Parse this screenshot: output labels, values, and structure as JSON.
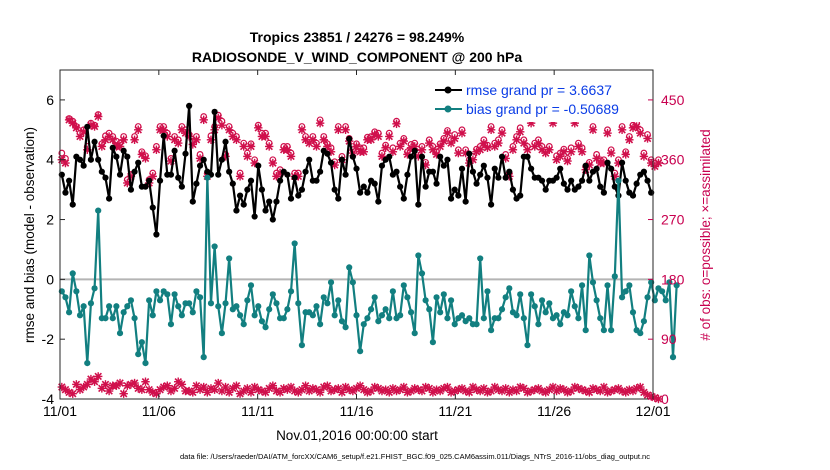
{
  "chart_data": {
    "type": "line",
    "title": "Tropics 23851 / 24276 = 98.249%",
    "subtitle": "RADIOSONDE_V_WIND_COMPONENT @ 200 hPa",
    "xlabel": "Nov.01,2016 00:00:00 start",
    "ylabel": "rmse and bias (model - observation)",
    "y2label": "# of obs: o=possible; ×=assimilated",
    "footnote": "data file: /Users/raeder/DAI/ATM_forcXX/CAM6_setup/f.e21.FHIST_BGC.f09_025.CAM6assim.011/Diags_NTrS_2016-11/obs_diag_output.nc",
    "xlim": [
      0,
      30
    ],
    "x_ticks": [
      0,
      5,
      10,
      15,
      20,
      25,
      30
    ],
    "x_tick_labels": [
      "11/01",
      "11/06",
      "11/11",
      "11/16",
      "11/21",
      "11/26",
      "12/01"
    ],
    "ylim": [
      -4,
      7
    ],
    "y_ticks": [
      -4,
      -2,
      0,
      2,
      4,
      6
    ],
    "y_tick_labels": [
      "-4",
      "-2",
      "0",
      "2",
      "4",
      "6"
    ],
    "y2lim": [
      0,
      495
    ],
    "y2_ticks": [
      0,
      90,
      180,
      270,
      360,
      450
    ],
    "y2_tick_labels": [
      "0",
      "90",
      "180",
      "270",
      "360",
      "450"
    ],
    "legend": [
      {
        "label": "rmse grand pr = 3.6637",
        "color": "#000000"
      },
      {
        "label": "bias grand pr = -0.50689",
        "color": "#127f80"
      }
    ],
    "colors": {
      "rmse": "#000000",
      "bias": "#127f80",
      "obs": "#d0104c",
      "zero": "#b4b4b4"
    },
    "series": [
      {
        "name": "rmse",
        "values": [
          3.5,
          2.9,
          3.3,
          2.5,
          4.1,
          4.0,
          3.8,
          5.1,
          4.0,
          4.6,
          4.0,
          3.6,
          3.4,
          2.7,
          4.4,
          4.1,
          3.5,
          4.3,
          4.1,
          3.0,
          3.6,
          3.9,
          3.1,
          3.1,
          3.3,
          2.4,
          1.5,
          3.3,
          4.8,
          3.5,
          3.5,
          4.3,
          3.4,
          3.1,
          4.2,
          5.8,
          2.6,
          3.2,
          3.8,
          4.0,
          3.6,
          3.5,
          5.6,
          3.5,
          4.0,
          4.6,
          3.6,
          3.2,
          2.3,
          2.8,
          2.5,
          3.0,
          3.3,
          2.1,
          3.8,
          3.0,
          2.3,
          2.6,
          2.0,
          2.6,
          3.3,
          3.6,
          3.5,
          2.7,
          3.4,
          2.8,
          3.0,
          3.6,
          4.0,
          3.3,
          3.3,
          3.6,
          4.3,
          4.2,
          3.9,
          3.0,
          2.7,
          4.0,
          3.5,
          4.7,
          4.1,
          3.7,
          2.9,
          3.1,
          2.9,
          3.3,
          3.2,
          2.6,
          3.8,
          4.0,
          4.1,
          3.5,
          3.6,
          3.1,
          2.7,
          3.5,
          4.1,
          4.3,
          2.5,
          4.1,
          3.1,
          3.6,
          3.6,
          3.2,
          4.1,
          3.8,
          4.0,
          2.7,
          3.0,
          2.8,
          3.7,
          2.6,
          4.2,
          3.6,
          3.2,
          3.5,
          3.8,
          3.4,
          2.5,
          3.7,
          3.4,
          4.1,
          3.4,
          3.6,
          3.0,
          2.7,
          2.8,
          4.1,
          4.1,
          3.7,
          3.4,
          3.4,
          3.3,
          3.0,
          3.3,
          3.3,
          3.4,
          3.7,
          3.2,
          3.0,
          3.3,
          3.0,
          3.1,
          3.3,
          3.8,
          3.3,
          3.6,
          3.7,
          3.1,
          2.9,
          3.9,
          3.7,
          3.1,
          2.8,
          3.9,
          3.3,
          2.9,
          2.8,
          3.2,
          3.5,
          3.6,
          3.3,
          2.9
        ]
      },
      {
        "name": "bias",
        "values": [
          -0.4,
          -0.6,
          -1.1,
          0.2,
          -0.4,
          -1.2,
          -0.9,
          -2.8,
          -0.8,
          -0.3,
          2.3,
          -1.3,
          -1.3,
          -0.9,
          -1.3,
          -0.9,
          -1.8,
          -1.1,
          -0.9,
          -0.7,
          -1.3,
          -2.5,
          -2.1,
          -2.8,
          -0.7,
          -1.2,
          -0.4,
          -0.7,
          -0.4,
          -0.5,
          -1.5,
          -0.5,
          -0.9,
          -1.2,
          -0.8,
          -0.8,
          -1.1,
          -0.4,
          -0.6,
          -2.6,
          3.4,
          -0.8,
          1.1,
          -0.9,
          -1.8,
          -0.8,
          0.7,
          -1.0,
          -0.9,
          -1.2,
          -1.5,
          -0.7,
          -0.2,
          -1.2,
          -0.9,
          -1.4,
          -1.6,
          -1.0,
          -0.5,
          -0.8,
          -1.3,
          -1.3,
          -1.0,
          -0.4,
          1.2,
          -0.8,
          -2.2,
          -1.1,
          -1.1,
          -1.2,
          -0.9,
          -1.5,
          -0.6,
          -0.8,
          -0.1,
          -1.2,
          -0.7,
          -1.4,
          -1.6,
          0.4,
          -0.1,
          -1.2,
          -2.4,
          -1.5,
          -1.3,
          -1.0,
          -0.6,
          -1.4,
          -1.2,
          -1.0,
          -1.3,
          -0.4,
          -1.3,
          -1.2,
          -0.2,
          -0.6,
          -1.1,
          -1.8,
          0.8,
          0.2,
          -0.7,
          -1.0,
          -2.1,
          -0.6,
          -1.1,
          -0.5,
          -1.3,
          -0.7,
          -1.5,
          -1.3,
          -1.2,
          -1.4,
          -1.3,
          -1.5,
          -1.5,
          0.7,
          -1.3,
          -0.4,
          -1.7,
          -1.3,
          -1.3,
          -1.0,
          -0.6,
          -0.3,
          -1.1,
          -1.2,
          -0.5,
          -1.3,
          -2.2,
          -0.5,
          -0.9,
          -1.5,
          -0.7,
          -1.1,
          -0.8,
          -1.3,
          -1.2,
          -1.5,
          -1.1,
          -1.2,
          -0.4,
          -0.9,
          -1.3,
          -0.2,
          -1.7,
          0.8,
          -0.1,
          -0.7,
          -1.3,
          -1.7,
          -0.2,
          -1.7,
          0.1,
          3.3,
          -0.6,
          -0.4,
          -0.2,
          -1.1,
          -1.7,
          -1.8,
          -1.4,
          -0.6,
          -0.1,
          -0.7,
          -0.3,
          -0.4,
          -0.7,
          -0.1,
          -2.6,
          -0.2
        ]
      },
      {
        "name": "obs_possible",
        "values": [
          370,
          362,
          422,
          418,
          410,
          400,
          405,
          380,
          415,
          412,
          428,
          384,
          396,
          400,
          395,
          388,
          385,
          395,
          330,
          338,
          395,
          410,
          372,
          366,
          330,
          340,
          380,
          410,
          410,
          400,
          362,
          395,
          390,
          410,
          405,
          398,
          388,
          395,
          368,
          425,
          340,
          396,
          410,
          427,
          418,
          368,
          410,
          400,
          395,
          340,
          385,
          370,
          384,
          360,
          412,
          400,
          400,
          385,
          360,
          340,
          345,
          380,
          380,
          370,
          340,
          340,
          410,
          395,
          390,
          395,
          385,
          420,
          395,
          384,
          378,
          357,
          410,
          365,
          410,
          392,
          375,
          384,
          378,
          378,
          394,
          395,
          402,
          400,
          370,
          382,
          400,
          378,
          418,
          385,
          392,
          372,
          383,
          385,
          370,
          380,
          356,
          390,
          380,
          372,
          384,
          392,
          404,
          390,
          398,
          375,
          405,
          375,
          360,
          365,
          376,
          380,
          390,
          382,
          410,
          385,
          390,
          405,
          368,
          340,
          380,
          395,
          408,
          390,
          380,
          420,
          385,
          390,
          380,
          374,
          380,
          420,
          366,
          370,
          376,
          362,
          378,
          420,
          385,
          378,
          350,
          356,
          410,
          368,
          360,
          360,
          405,
          375,
          340,
          360,
          410,
          372,
          395,
          412,
          415,
          405,
          370,
          398,
          360,
          354,
          360
        ]
      },
      {
        "name": "obs_assimilated",
        "values": [
          360,
          355,
          420,
          415,
          408,
          395,
          402,
          375,
          412,
          410,
          425,
          380,
          390,
          395,
          390,
          380,
          380,
          390,
          325,
          335,
          390,
          405,
          368,
          362,
          325,
          335,
          375,
          405,
          405,
          395,
          358,
          390,
          385,
          405,
          400,
          395,
          383,
          390,
          362,
          420,
          335,
          390,
          405,
          423,
          412,
          365,
          405,
          395,
          390,
          335,
          380,
          365,
          380,
          355,
          408,
          395,
          395,
          380,
          355,
          335,
          340,
          375,
          375,
          365,
          335,
          335,
          405,
          390,
          385,
          390,
          380,
          415,
          390,
          380,
          372,
          352,
          405,
          360,
          405,
          388,
          370,
          380,
          372,
          372,
          390,
          390,
          398,
          395,
          365,
          378,
          395,
          372,
          414,
          380,
          388,
          368,
          378,
          380,
          365,
          375,
          352,
          385,
          375,
          368,
          380,
          388,
          400,
          385,
          392,
          370,
          400,
          370,
          355,
          360,
          372,
          375,
          385,
          378,
          405,
          380,
          385,
          400,
          362,
          335,
          375,
          390,
          402,
          385,
          375,
          415,
          380,
          385,
          375,
          370,
          375,
          415,
          360,
          365,
          372,
          358,
          372,
          415,
          380,
          372,
          345,
          352,
          405,
          362,
          355,
          355,
          400,
          370,
          335,
          355,
          405,
          368,
          390,
          408,
          410,
          400,
          365,
          392,
          355,
          350,
          355
        ]
      },
      {
        "name": "obs_rejected_count",
        "values": [
          18,
          14,
          10,
          8,
          22,
          14,
          18,
          22,
          30,
          26,
          34,
          16,
          22,
          12,
          20,
          20,
          24,
          8,
          20,
          22,
          24,
          16,
          14,
          26,
          14,
          10,
          8,
          14,
          18,
          20,
          12,
          16,
          26,
          22,
          12,
          12,
          10,
          20,
          14,
          18,
          10,
          16,
          14,
          24,
          12,
          18,
          10,
          16,
          20,
          8,
          12,
          16,
          10,
          18,
          14,
          12,
          10,
          16,
          20,
          12,
          10,
          16,
          14,
          18,
          12,
          10,
          14,
          20,
          12,
          16,
          14,
          10,
          18,
          20,
          12,
          14,
          16,
          10,
          18,
          14,
          12,
          16,
          20,
          14,
          10,
          12,
          18,
          16,
          12,
          14,
          10,
          16,
          12,
          14,
          18,
          10,
          12,
          16,
          14,
          12,
          18,
          16,
          10,
          14,
          12,
          16,
          18,
          10,
          12,
          14,
          16,
          12,
          10,
          18,
          14,
          12,
          16,
          10,
          12,
          18,
          14,
          12,
          16,
          10,
          14,
          12,
          18,
          16,
          10,
          12,
          14,
          16,
          12,
          10,
          14,
          18,
          12,
          16,
          14,
          10,
          12,
          18,
          16,
          14,
          12,
          10,
          16,
          14,
          12,
          18,
          10,
          12,
          14,
          16,
          12,
          10,
          14,
          12,
          16,
          18,
          10,
          6,
          4,
          2,
          0
        ]
      }
    ]
  }
}
